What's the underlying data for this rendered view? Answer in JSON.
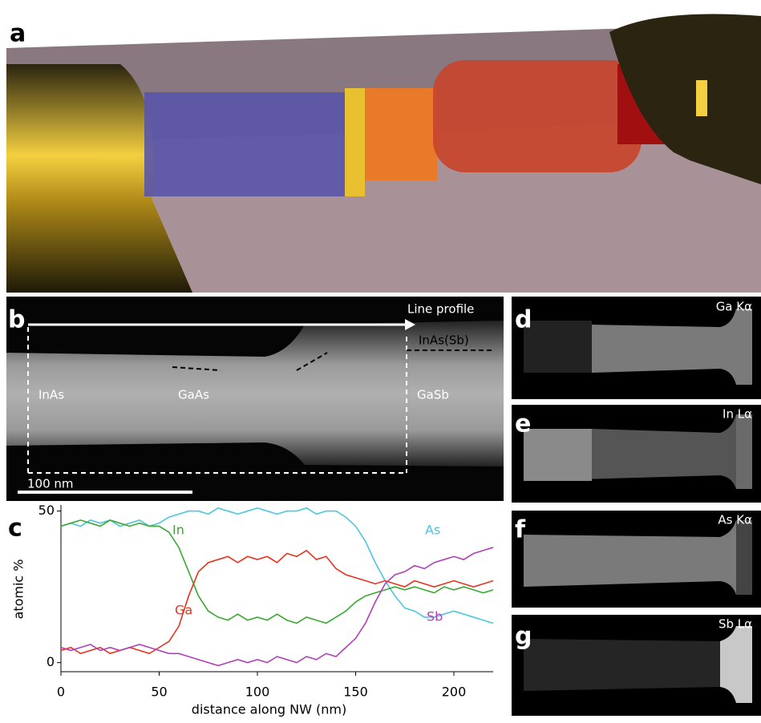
{
  "panel_labels": [
    "a",
    "b",
    "c",
    "d",
    "e",
    "f",
    "g"
  ],
  "panel_b": {
    "line_profile": "Line profile",
    "regions": [
      "InAs",
      "GaAs",
      "GaSb",
      "InAs(Sb)"
    ],
    "scale_bar": "100 nm"
  },
  "maps": [
    "Ga Kα",
    "In Lα",
    "As Kα",
    "Sb Lα"
  ],
  "chart_data": {
    "type": "line",
    "xlabel": "distance along NW (nm)",
    "ylabel": "atomic %",
    "x": [
      0,
      5,
      10,
      15,
      20,
      25,
      30,
      35,
      40,
      45,
      50,
      55,
      60,
      65,
      70,
      75,
      80,
      85,
      90,
      95,
      100,
      105,
      110,
      115,
      120,
      125,
      130,
      135,
      140,
      145,
      150,
      155,
      160,
      165,
      170,
      175,
      180,
      185,
      190,
      195,
      200,
      205,
      210,
      215,
      220
    ],
    "xlim": [
      0,
      220
    ],
    "ylim": [
      -3,
      52
    ],
    "xticks": [
      0,
      50,
      100,
      150,
      200
    ],
    "yticks": [
      0,
      50
    ],
    "series": [
      {
        "name": "As",
        "color": "#4cc6dc",
        "values": [
          45,
          46,
          45,
          47,
          46,
          47,
          45,
          46,
          47,
          45,
          46,
          48,
          49,
          50,
          50,
          49,
          51,
          50,
          49,
          50,
          51,
          50,
          49,
          50,
          50,
          51,
          49,
          50,
          50,
          48,
          45,
          40,
          33,
          27,
          22,
          18,
          17,
          15,
          15,
          16,
          17,
          16,
          15,
          14,
          13
        ]
      },
      {
        "name": "In",
        "color": "#3aa832",
        "values": [
          45,
          46,
          47,
          46,
          45,
          47,
          46,
          45,
          46,
          45,
          45,
          43,
          38,
          30,
          22,
          17,
          15,
          14,
          16,
          14,
          15,
          14,
          16,
          14,
          13,
          15,
          14,
          13,
          15,
          17,
          20,
          22,
          23,
          24,
          25,
          24,
          25,
          24,
          23,
          25,
          24,
          25,
          24,
          23,
          24
        ]
      },
      {
        "name": "Ga",
        "color": "#e8321e",
        "values": [
          4,
          5,
          3,
          4,
          5,
          3,
          4,
          5,
          4,
          3,
          5,
          7,
          12,
          22,
          30,
          33,
          34,
          35,
          33,
          35,
          34,
          35,
          33,
          36,
          35,
          37,
          34,
          35,
          31,
          29,
          28,
          27,
          26,
          27,
          26,
          25,
          27,
          26,
          25,
          26,
          27,
          26,
          25,
          26,
          27
        ]
      },
      {
        "name": "Sb",
        "color": "#b040b8",
        "values": [
          5,
          4,
          5,
          6,
          4,
          5,
          4,
          5,
          6,
          5,
          4,
          3,
          3,
          2,
          1,
          0,
          -1,
          0,
          1,
          0,
          1,
          0,
          2,
          1,
          0,
          2,
          1,
          3,
          2,
          5,
          8,
          13,
          20,
          26,
          29,
          30,
          32,
          31,
          33,
          34,
          35,
          34,
          36,
          37,
          38
        ]
      }
    ]
  }
}
